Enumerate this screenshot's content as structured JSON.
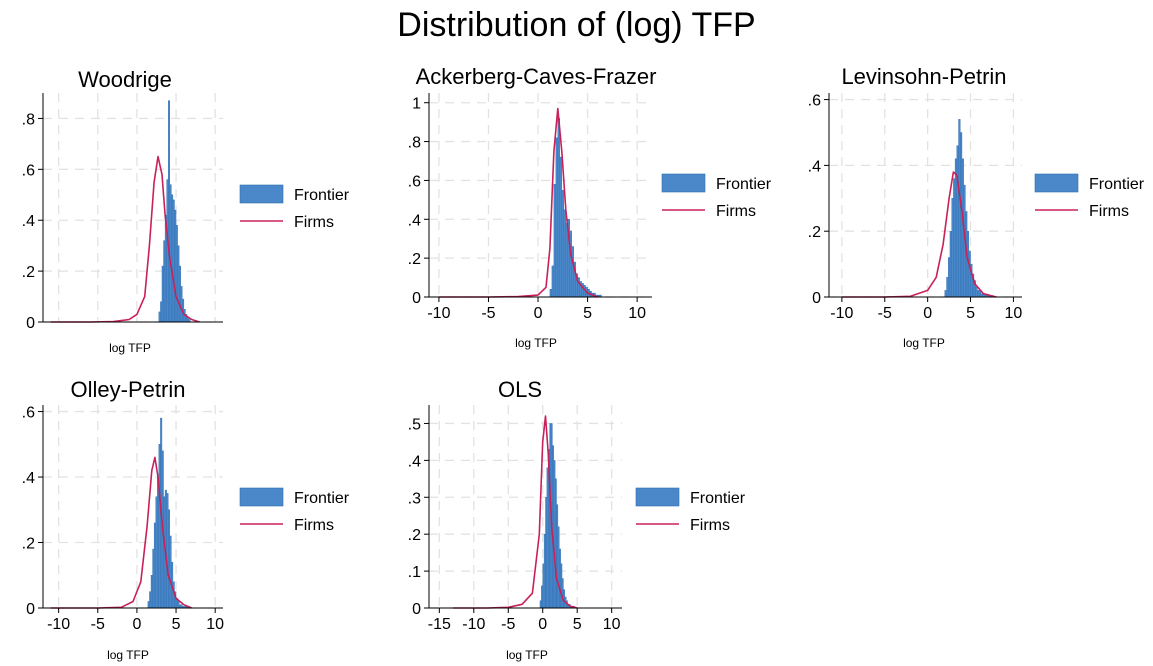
{
  "title": "Distribution of (log) TFP",
  "colors": {
    "frontier": "#4a88c9",
    "frontier_edge": "#2f6fb3",
    "firms": "#c8215a",
    "grid": "#e2e2e2",
    "axis": "#000000"
  },
  "legend": {
    "frontier": "Frontier",
    "firms": "Firms"
  },
  "chart_data": [
    {
      "type": "histogram+line",
      "title": "Woodrige",
      "xlabel": "log TFP",
      "ylabel": "",
      "xlim": [
        -12,
        11
      ],
      "ylim": [
        0,
        0.9
      ],
      "xticks": [],
      "yticks": [
        0,
        0.2,
        0.4,
        0.6,
        0.8
      ],
      "yticklabels": [
        "0",
        ".2",
        ".4",
        ".6",
        ".8"
      ],
      "grid": true,
      "legend_position": "right",
      "series": [
        {
          "name": "Frontier",
          "kind": "histogram",
          "bin_start": 2.8,
          "bin_width": 0.2,
          "values": [
            0.04,
            0.08,
            0.22,
            0.32,
            0.42,
            0.56,
            0.87,
            0.54,
            0.5,
            0.48,
            0.44,
            0.38,
            0.3,
            0.22,
            0.14,
            0.09,
            0.05,
            0.03,
            0.02,
            0.01
          ]
        },
        {
          "name": "Firms",
          "kind": "density",
          "x": [
            -11,
            -6,
            -3,
            -1,
            0,
            1,
            1.6,
            2.2,
            2.7,
            3.2,
            3.6,
            4.2,
            5,
            6,
            7,
            8
          ],
          "y": [
            0,
            0,
            0.002,
            0.01,
            0.03,
            0.1,
            0.3,
            0.55,
            0.65,
            0.58,
            0.42,
            0.25,
            0.1,
            0.03,
            0.01,
            0
          ]
        }
      ]
    },
    {
      "type": "histogram+line",
      "title": "Ackerberg-Caves-Frazer",
      "xlabel": "log TFP",
      "ylabel": "",
      "xlim": [
        -11,
        11.5
      ],
      "ylim": [
        0,
        1.05
      ],
      "xticks": [
        -10,
        -5,
        0,
        5,
        10
      ],
      "xticklabels": [
        "-10",
        "-5",
        "0",
        "5",
        "10"
      ],
      "yticks": [
        0,
        0.2,
        0.4,
        0.6,
        0.8,
        1
      ],
      "yticklabels": [
        "0",
        ".2",
        ".4",
        ".6",
        ".8",
        "1"
      ],
      "grid": true,
      "legend_position": "right",
      "series": [
        {
          "name": "Frontier",
          "kind": "histogram",
          "bin_start": 1.2,
          "bin_width": 0.2,
          "values": [
            0.04,
            0.16,
            0.58,
            0.82,
            0.92,
            0.72,
            0.55,
            0.45,
            0.38,
            0.4,
            0.34,
            0.26,
            0.18,
            0.12,
            0.1,
            0.08,
            0.07,
            0.06,
            0.05,
            0.04,
            0.03,
            0.02,
            0.02,
            0.01,
            0.01,
            0.01
          ]
        },
        {
          "name": "Firms",
          "kind": "density",
          "x": [
            -10,
            -5,
            -2,
            0,
            0.8,
            1.2,
            1.6,
            2,
            2.4,
            2.8,
            3.3,
            4,
            5,
            6
          ],
          "y": [
            0,
            0,
            0.002,
            0.01,
            0.05,
            0.25,
            0.75,
            0.97,
            0.75,
            0.45,
            0.22,
            0.08,
            0.02,
            0
          ]
        }
      ]
    },
    {
      "type": "histogram+line",
      "title": "Levinsohn-Petrin",
      "xlabel": "log TFP",
      "ylabel": "",
      "xlim": [
        -11.5,
        11
      ],
      "ylim": [
        0,
        0.62
      ],
      "xticks": [
        -10,
        -5,
        0,
        5,
        10
      ],
      "xticklabels": [
        "-10",
        "-5",
        "0",
        "5",
        "10"
      ],
      "yticks": [
        0,
        0.2,
        0.4,
        0.6
      ],
      "yticklabels": [
        "0",
        ".2",
        ".4",
        ".6"
      ],
      "grid": true,
      "legend_position": "right",
      "series": [
        {
          "name": "Frontier",
          "kind": "histogram",
          "bin_start": 2,
          "bin_width": 0.2,
          "values": [
            0.02,
            0.06,
            0.12,
            0.2,
            0.3,
            0.36,
            0.42,
            0.46,
            0.54,
            0.5,
            0.42,
            0.34,
            0.26,
            0.2,
            0.14,
            0.1,
            0.07,
            0.05,
            0.03,
            0.02,
            0.02,
            0.01,
            0.01,
            0.005,
            0.005,
            0.005,
            0.005,
            0.005
          ]
        },
        {
          "name": "Firms",
          "kind": "density",
          "x": [
            -10,
            -5,
            -2,
            0,
            1,
            1.8,
            2.5,
            3,
            3.4,
            4,
            4.6,
            5.5,
            6.5,
            8
          ],
          "y": [
            0,
            0,
            0.002,
            0.02,
            0.06,
            0.16,
            0.3,
            0.38,
            0.37,
            0.26,
            0.12,
            0.04,
            0.01,
            0
          ]
        }
      ]
    },
    {
      "type": "histogram+line",
      "title": "Olley-Petrin",
      "xlabel": "log TFP",
      "ylabel": "",
      "xlim": [
        -12,
        11
      ],
      "ylim": [
        0,
        0.62
      ],
      "xticks": [
        -10,
        -5,
        0,
        5,
        10
      ],
      "xticklabels": [
        "-10",
        "-5",
        "0",
        "5",
        "10"
      ],
      "yticks": [
        0,
        0.2,
        0.4,
        0.6
      ],
      "yticklabels": [
        "0",
        ".2",
        ".4",
        ".6"
      ],
      "grid": true,
      "legend_position": "right",
      "series": [
        {
          "name": "Frontier",
          "kind": "histogram",
          "bin_start": 1.4,
          "bin_width": 0.2,
          "values": [
            0.02,
            0.05,
            0.1,
            0.18,
            0.26,
            0.34,
            0.4,
            0.5,
            0.58,
            0.48,
            0.34,
            0.36,
            0.35,
            0.3,
            0.22,
            0.14,
            0.08,
            0.05,
            0.03,
            0.02,
            0.01,
            0.01,
            0.005,
            0.005,
            0.005,
            0.005
          ]
        },
        {
          "name": "Firms",
          "kind": "density",
          "x": [
            -11,
            -5,
            -2,
            -0.5,
            0.5,
            1.3,
            1.9,
            2.3,
            2.7,
            3.3,
            4,
            5,
            6,
            7
          ],
          "y": [
            0,
            0,
            0.002,
            0.02,
            0.08,
            0.25,
            0.42,
            0.46,
            0.4,
            0.24,
            0.1,
            0.03,
            0.01,
            0
          ]
        }
      ]
    },
    {
      "type": "histogram+line",
      "title": "OLS",
      "xlabel": "log TFP",
      "ylabel": "",
      "xlim": [
        -16.5,
        11.5
      ],
      "ylim": [
        0,
        0.55
      ],
      "xticks": [
        -15,
        -10,
        -5,
        0,
        5,
        10
      ],
      "xticklabels": [
        "-15",
        "-10",
        "-5",
        "0",
        "5",
        "10"
      ],
      "yticks": [
        0,
        0.1,
        0.2,
        0.3,
        0.4,
        0.5
      ],
      "yticklabels": [
        "0",
        ".1",
        ".2",
        ".3",
        ".4",
        ".5"
      ],
      "grid": true,
      "legend_position": "right",
      "series": [
        {
          "name": "Frontier",
          "kind": "histogram",
          "bin_start": -0.4,
          "bin_width": 0.2,
          "values": [
            0.02,
            0.06,
            0.12,
            0.2,
            0.3,
            0.38,
            0.43,
            0.5,
            0.5,
            0.44,
            0.4,
            0.35,
            0.28,
            0.22,
            0.16,
            0.12,
            0.08,
            0.05,
            0.03,
            0.02,
            0.01,
            0.01,
            0.005,
            0.005,
            0.005
          ]
        },
        {
          "name": "Firms",
          "kind": "density",
          "x": [
            -13,
            -8,
            -5,
            -3,
            -1.5,
            -0.5,
            0,
            0.4,
            0.8,
            1.3,
            2,
            3,
            4,
            5
          ],
          "y": [
            0,
            0,
            0.002,
            0.01,
            0.04,
            0.2,
            0.45,
            0.52,
            0.42,
            0.22,
            0.08,
            0.02,
            0.005,
            0
          ]
        }
      ]
    }
  ]
}
